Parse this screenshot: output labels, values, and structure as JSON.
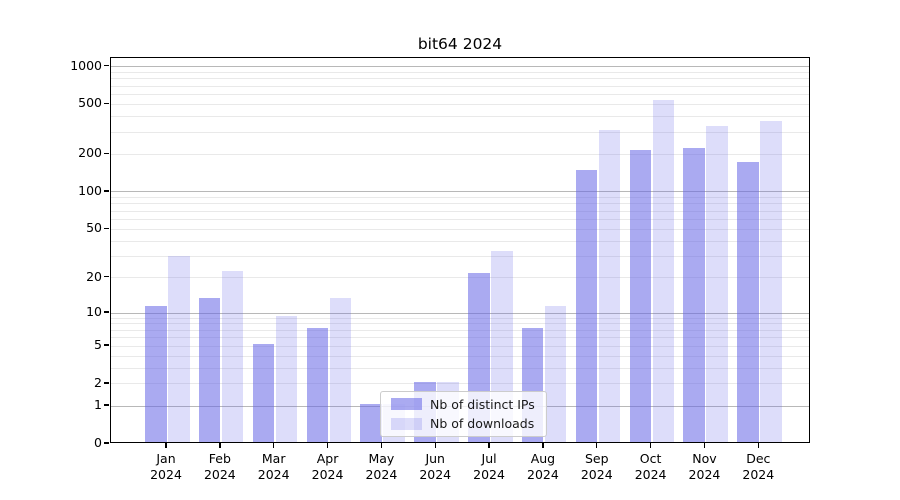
{
  "title": "bit64 2024",
  "colors": {
    "distinct_ips_bar": "rgba(100,100,230,0.55)",
    "downloads_bar": "rgba(100,100,230,0.22)",
    "grid_major": "#b8b8b8",
    "grid_minor": "#e9e9e9",
    "spine": "#000000",
    "legend_border": "#cccccc"
  },
  "chart_data": {
    "type": "bar",
    "title": "bit64 2024",
    "scale": "log1p",
    "categories": [
      "Jan 2024",
      "Feb 2024",
      "Mar 2024",
      "Apr 2024",
      "May 2024",
      "Jun 2024",
      "Jul 2024",
      "Aug 2024",
      "Sep 2024",
      "Oct 2024",
      "Nov 2024",
      "Dec 2024"
    ],
    "series": [
      {
        "name": "Nb of distinct IPs",
        "color": "rgba(100,100,230,0.55)",
        "values": [
          11,
          13,
          5,
          7,
          1,
          2,
          21,
          7,
          145,
          209,
          215,
          167
        ]
      },
      {
        "name": "Nb of downloads",
        "color": "rgba(100,100,230,0.22)",
        "values": [
          29,
          22,
          9,
          13,
          1,
          2,
          32,
          11,
          300,
          527,
          322,
          357
        ]
      }
    ],
    "xlabel": "",
    "ylabel": "",
    "y_ticks": [
      0,
      1,
      2,
      5,
      10,
      20,
      50,
      100,
      200,
      500,
      1000
    ],
    "y_major_gridlines": [
      1,
      10,
      100,
      1000
    ],
    "ylim": [
      0,
      1170
    ],
    "grid": true,
    "legend_position": "lower-center"
  }
}
